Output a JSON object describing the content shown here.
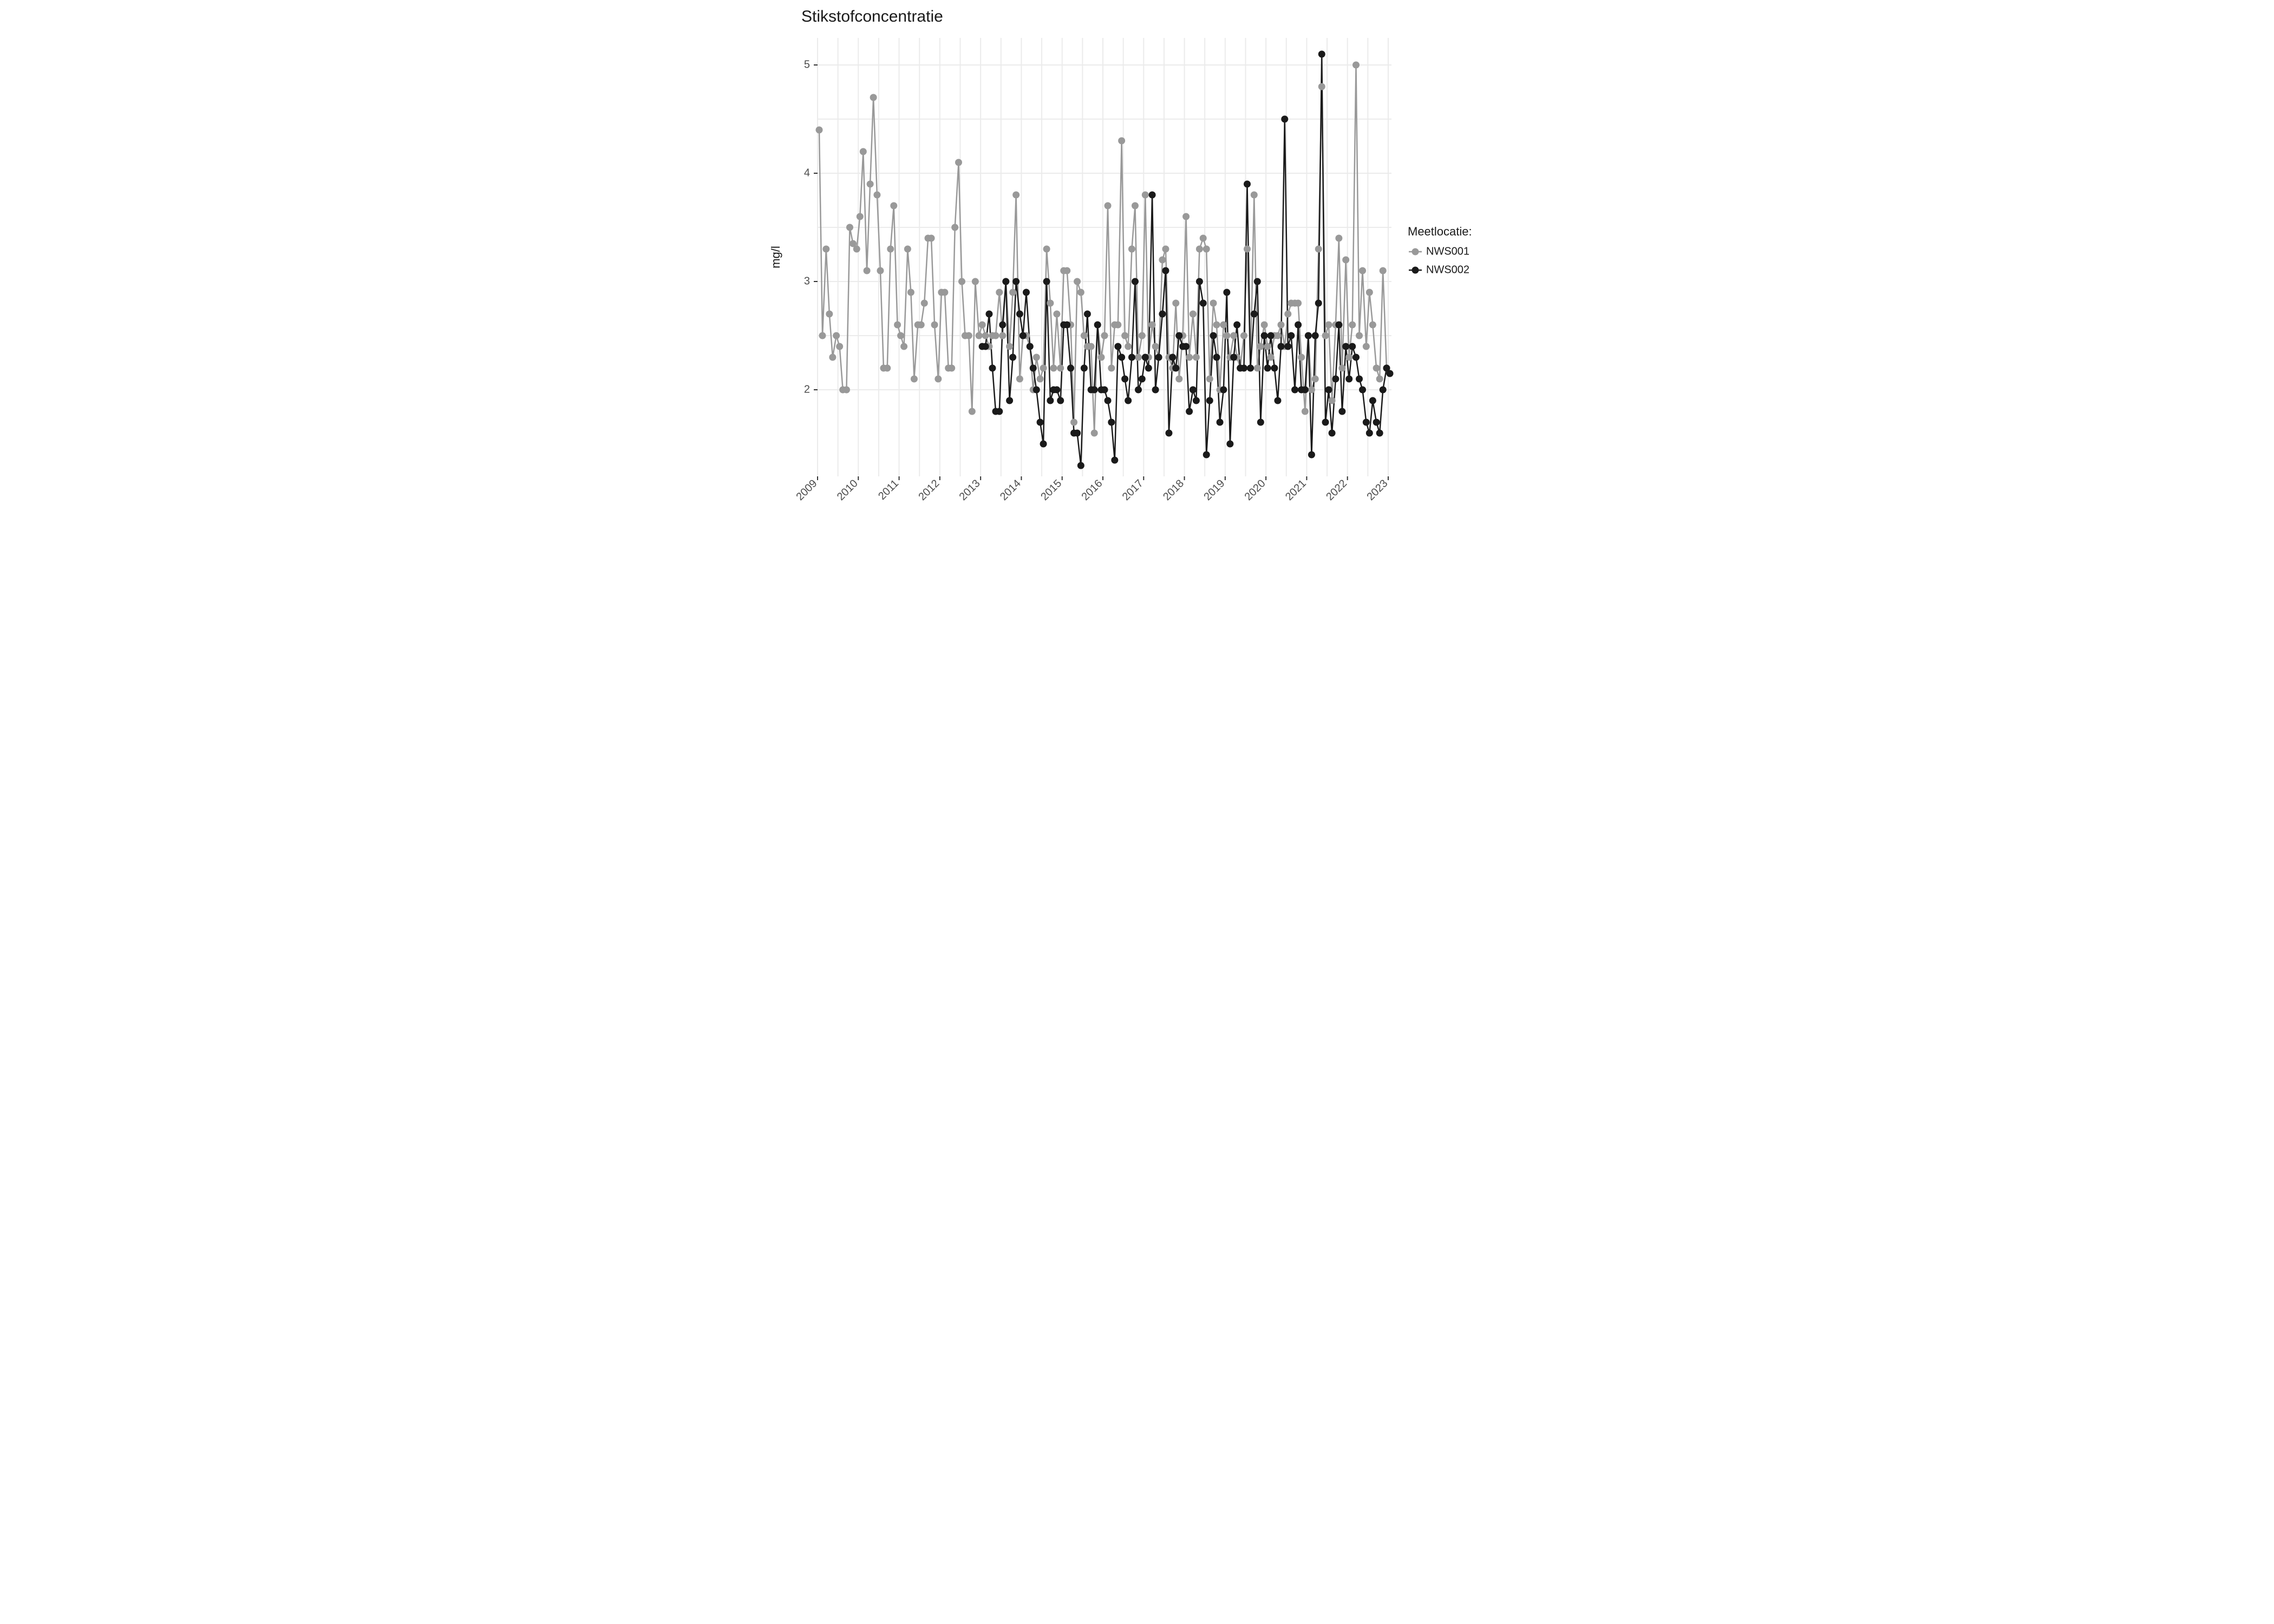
{
  "chart": {
    "type": "line",
    "title": "Stikstofconcentratie",
    "title_fontsize": 30,
    "title_color": "#1a1a1a",
    "ylabel": "mg/l",
    "ylabel_fontsize": 22,
    "legend_title": "Meetlocatie:",
    "legend_fontsize": 22,
    "background_color": "#ffffff",
    "panel_background": "#ffffff",
    "grid_color": "#ebebeb",
    "axis_tick_color": "#333333",
    "tick_label_color": "#4d4d4d",
    "tick_fontsize": 20,
    "point_radius": 6.5,
    "line_width": 2.5,
    "x": {
      "min": 2009.0,
      "max": 2023.08,
      "ticks": [
        2009,
        2010,
        2011,
        2012,
        2013,
        2014,
        2015,
        2016,
        2017,
        2018,
        2019,
        2020,
        2021,
        2022,
        2023
      ],
      "tick_rotation": 45
    },
    "y": {
      "min": 1.2,
      "max": 5.25,
      "ticks": [
        2,
        3,
        4,
        5
      ]
    },
    "series": [
      {
        "name": "NWS001",
        "color": "#999999",
        "data": [
          [
            2009.04,
            4.4
          ],
          [
            2009.12,
            2.5
          ],
          [
            2009.21,
            3.3
          ],
          [
            2009.29,
            2.7
          ],
          [
            2009.37,
            2.3
          ],
          [
            2009.46,
            2.5
          ],
          [
            2009.54,
            2.4
          ],
          [
            2009.62,
            2.0
          ],
          [
            2009.71,
            2.0
          ],
          [
            2009.79,
            3.5
          ],
          [
            2009.87,
            3.35
          ],
          [
            2009.96,
            3.3
          ],
          [
            2010.04,
            3.6
          ],
          [
            2010.12,
            4.2
          ],
          [
            2010.21,
            3.1
          ],
          [
            2010.29,
            3.9
          ],
          [
            2010.37,
            4.7
          ],
          [
            2010.46,
            3.8
          ],
          [
            2010.54,
            3.1
          ],
          [
            2010.62,
            2.2
          ],
          [
            2010.71,
            2.2
          ],
          [
            2010.79,
            3.3
          ],
          [
            2010.87,
            3.7
          ],
          [
            2010.96,
            2.6
          ],
          [
            2011.04,
            2.5
          ],
          [
            2011.12,
            2.4
          ],
          [
            2011.21,
            3.3
          ],
          [
            2011.29,
            2.9
          ],
          [
            2011.37,
            2.1
          ],
          [
            2011.46,
            2.6
          ],
          [
            2011.54,
            2.6
          ],
          [
            2011.62,
            2.8
          ],
          [
            2011.71,
            3.4
          ],
          [
            2011.79,
            3.4
          ],
          [
            2011.87,
            2.6
          ],
          [
            2011.96,
            2.1
          ],
          [
            2012.04,
            2.9
          ],
          [
            2012.12,
            2.9
          ],
          [
            2012.21,
            2.2
          ],
          [
            2012.29,
            2.2
          ],
          [
            2012.37,
            3.5
          ],
          [
            2012.46,
            4.1
          ],
          [
            2012.54,
            3.0
          ],
          [
            2012.62,
            2.5
          ],
          [
            2012.71,
            2.5
          ],
          [
            2012.79,
            1.8
          ],
          [
            2012.87,
            3.0
          ],
          [
            2012.96,
            2.5
          ],
          [
            2013.04,
            2.6
          ],
          [
            2013.12,
            2.5
          ],
          [
            2013.21,
            2.4
          ],
          [
            2013.29,
            2.5
          ],
          [
            2013.37,
            2.5
          ],
          [
            2013.46,
            2.9
          ],
          [
            2013.54,
            2.5
          ],
          [
            2013.62,
            3.0
          ],
          [
            2013.71,
            2.4
          ],
          [
            2013.79,
            2.9
          ],
          [
            2013.87,
            3.8
          ],
          [
            2013.96,
            2.1
          ],
          [
            2014.04,
            2.5
          ],
          [
            2014.12,
            2.5
          ],
          [
            2014.21,
            2.4
          ],
          [
            2014.29,
            2.0
          ],
          [
            2014.37,
            2.3
          ],
          [
            2014.46,
            2.1
          ],
          [
            2014.54,
            2.2
          ],
          [
            2014.62,
            3.3
          ],
          [
            2014.71,
            2.8
          ],
          [
            2014.79,
            2.2
          ],
          [
            2014.87,
            2.7
          ],
          [
            2014.96,
            2.2
          ],
          [
            2015.04,
            3.1
          ],
          [
            2015.12,
            3.1
          ],
          [
            2015.21,
            2.6
          ],
          [
            2015.29,
            1.7
          ],
          [
            2015.37,
            3.0
          ],
          [
            2015.46,
            2.9
          ],
          [
            2015.54,
            2.5
          ],
          [
            2015.62,
            2.4
          ],
          [
            2015.71,
            2.4
          ],
          [
            2015.79,
            1.6
          ],
          [
            2015.87,
            2.6
          ],
          [
            2015.96,
            2.3
          ],
          [
            2016.04,
            2.5
          ],
          [
            2016.12,
            3.7
          ],
          [
            2016.21,
            2.2
          ],
          [
            2016.29,
            2.6
          ],
          [
            2016.37,
            2.6
          ],
          [
            2016.46,
            4.3
          ],
          [
            2016.54,
            2.5
          ],
          [
            2016.62,
            2.4
          ],
          [
            2016.71,
            3.3
          ],
          [
            2016.79,
            3.7
          ],
          [
            2016.87,
            2.3
          ],
          [
            2016.96,
            2.5
          ],
          [
            2017.04,
            3.8
          ],
          [
            2017.12,
            2.3
          ],
          [
            2017.21,
            2.6
          ],
          [
            2017.29,
            2.4
          ],
          [
            2017.37,
            2.3
          ],
          [
            2017.46,
            3.2
          ],
          [
            2017.54,
            3.3
          ],
          [
            2017.62,
            2.3
          ],
          [
            2017.71,
            2.2
          ],
          [
            2017.79,
            2.8
          ],
          [
            2017.87,
            2.1
          ],
          [
            2017.96,
            2.5
          ],
          [
            2018.04,
            3.6
          ],
          [
            2018.12,
            2.3
          ],
          [
            2018.21,
            2.7
          ],
          [
            2018.29,
            2.3
          ],
          [
            2018.37,
            3.3
          ],
          [
            2018.46,
            3.4
          ],
          [
            2018.54,
            3.3
          ],
          [
            2018.62,
            2.1
          ],
          [
            2018.71,
            2.8
          ],
          [
            2018.79,
            2.6
          ],
          [
            2018.87,
            2.0
          ],
          [
            2018.96,
            2.6
          ],
          [
            2019.04,
            2.5
          ],
          [
            2019.12,
            2.3
          ],
          [
            2019.21,
            2.5
          ],
          [
            2019.29,
            2.3
          ],
          [
            2019.37,
            2.2
          ],
          [
            2019.46,
            2.5
          ],
          [
            2019.54,
            3.3
          ],
          [
            2019.62,
            2.2
          ],
          [
            2019.71,
            3.8
          ],
          [
            2019.79,
            2.2
          ],
          [
            2019.87,
            2.4
          ],
          [
            2019.96,
            2.6
          ],
          [
            2020.04,
            2.4
          ],
          [
            2020.12,
            2.3
          ],
          [
            2020.21,
            2.5
          ],
          [
            2020.29,
            2.5
          ],
          [
            2020.37,
            2.6
          ],
          [
            2020.46,
            2.4
          ],
          [
            2020.54,
            2.7
          ],
          [
            2020.62,
            2.8
          ],
          [
            2020.71,
            2.8
          ],
          [
            2020.79,
            2.8
          ],
          [
            2020.87,
            2.3
          ],
          [
            2020.96,
            1.8
          ],
          [
            2021.04,
            2.5
          ],
          [
            2021.12,
            2.0
          ],
          [
            2021.21,
            2.1
          ],
          [
            2021.29,
            3.3
          ],
          [
            2021.37,
            4.8
          ],
          [
            2021.46,
            2.5
          ],
          [
            2021.54,
            2.6
          ],
          [
            2021.62,
            1.9
          ],
          [
            2021.71,
            2.6
          ],
          [
            2021.79,
            3.4
          ],
          [
            2021.87,
            2.2
          ],
          [
            2021.96,
            3.2
          ],
          [
            2022.04,
            2.3
          ],
          [
            2022.12,
            2.6
          ],
          [
            2022.21,
            5.0
          ],
          [
            2022.29,
            2.5
          ],
          [
            2022.37,
            3.1
          ],
          [
            2022.46,
            2.4
          ],
          [
            2022.54,
            2.9
          ],
          [
            2022.62,
            2.6
          ],
          [
            2022.71,
            2.2
          ],
          [
            2022.79,
            2.1
          ],
          [
            2022.87,
            3.1
          ],
          [
            2022.96,
            2.2
          ],
          [
            2023.04,
            2.15
          ]
        ]
      },
      {
        "name": "NWS002",
        "color": "#1a1a1a",
        "data": [
          [
            2013.04,
            2.4
          ],
          [
            2013.12,
            2.4
          ],
          [
            2013.21,
            2.7
          ],
          [
            2013.29,
            2.2
          ],
          [
            2013.37,
            1.8
          ],
          [
            2013.46,
            1.8
          ],
          [
            2013.54,
            2.6
          ],
          [
            2013.62,
            3.0
          ],
          [
            2013.71,
            1.9
          ],
          [
            2013.79,
            2.3
          ],
          [
            2013.87,
            3.0
          ],
          [
            2013.96,
            2.7
          ],
          [
            2014.04,
            2.5
          ],
          [
            2014.12,
            2.9
          ],
          [
            2014.21,
            2.4
          ],
          [
            2014.29,
            2.2
          ],
          [
            2014.37,
            2.0
          ],
          [
            2014.46,
            1.7
          ],
          [
            2014.54,
            1.5
          ],
          [
            2014.62,
            3.0
          ],
          [
            2014.71,
            1.9
          ],
          [
            2014.79,
            2.0
          ],
          [
            2014.87,
            2.0
          ],
          [
            2014.96,
            1.9
          ],
          [
            2015.04,
            2.6
          ],
          [
            2015.12,
            2.6
          ],
          [
            2015.21,
            2.2
          ],
          [
            2015.29,
            1.6
          ],
          [
            2015.37,
            1.6
          ],
          [
            2015.46,
            1.3
          ],
          [
            2015.54,
            2.2
          ],
          [
            2015.62,
            2.7
          ],
          [
            2015.71,
            2.0
          ],
          [
            2015.79,
            2.0
          ],
          [
            2015.87,
            2.6
          ],
          [
            2015.96,
            2.0
          ],
          [
            2016.04,
            2.0
          ],
          [
            2016.12,
            1.9
          ],
          [
            2016.21,
            1.7
          ],
          [
            2016.29,
            1.35
          ],
          [
            2016.37,
            2.4
          ],
          [
            2016.46,
            2.3
          ],
          [
            2016.54,
            2.1
          ],
          [
            2016.62,
            1.9
          ],
          [
            2016.71,
            2.3
          ],
          [
            2016.79,
            3.0
          ],
          [
            2016.87,
            2.0
          ],
          [
            2016.96,
            2.1
          ],
          [
            2017.04,
            2.3
          ],
          [
            2017.12,
            2.2
          ],
          [
            2017.21,
            3.8
          ],
          [
            2017.29,
            2.0
          ],
          [
            2017.37,
            2.3
          ],
          [
            2017.46,
            2.7
          ],
          [
            2017.54,
            3.1
          ],
          [
            2017.62,
            1.6
          ],
          [
            2017.71,
            2.3
          ],
          [
            2017.79,
            2.2
          ],
          [
            2017.87,
            2.5
          ],
          [
            2017.96,
            2.4
          ],
          [
            2018.04,
            2.4
          ],
          [
            2018.12,
            1.8
          ],
          [
            2018.21,
            2.0
          ],
          [
            2018.29,
            1.9
          ],
          [
            2018.37,
            3.0
          ],
          [
            2018.46,
            2.8
          ],
          [
            2018.54,
            1.4
          ],
          [
            2018.62,
            1.9
          ],
          [
            2018.71,
            2.5
          ],
          [
            2018.79,
            2.3
          ],
          [
            2018.87,
            1.7
          ],
          [
            2018.96,
            2.0
          ],
          [
            2019.04,
            2.9
          ],
          [
            2019.12,
            1.5
          ],
          [
            2019.21,
            2.3
          ],
          [
            2019.29,
            2.6
          ],
          [
            2019.37,
            2.2
          ],
          [
            2019.46,
            2.2
          ],
          [
            2019.54,
            3.9
          ],
          [
            2019.62,
            2.2
          ],
          [
            2019.71,
            2.7
          ],
          [
            2019.79,
            3.0
          ],
          [
            2019.87,
            1.7
          ],
          [
            2019.96,
            2.5
          ],
          [
            2020.04,
            2.2
          ],
          [
            2020.12,
            2.5
          ],
          [
            2020.21,
            2.2
          ],
          [
            2020.29,
            1.9
          ],
          [
            2020.37,
            2.4
          ],
          [
            2020.46,
            4.5
          ],
          [
            2020.54,
            2.4
          ],
          [
            2020.62,
            2.5
          ],
          [
            2020.71,
            2.0
          ],
          [
            2020.79,
            2.6
          ],
          [
            2020.87,
            2.0
          ],
          [
            2020.96,
            2.0
          ],
          [
            2021.04,
            2.5
          ],
          [
            2021.12,
            1.4
          ],
          [
            2021.21,
            2.5
          ],
          [
            2021.29,
            2.8
          ],
          [
            2021.37,
            5.1
          ],
          [
            2021.46,
            1.7
          ],
          [
            2021.54,
            2.0
          ],
          [
            2021.62,
            1.6
          ],
          [
            2021.71,
            2.1
          ],
          [
            2021.79,
            2.6
          ],
          [
            2021.87,
            1.8
          ],
          [
            2021.96,
            2.4
          ],
          [
            2022.04,
            2.1
          ],
          [
            2022.12,
            2.4
          ],
          [
            2022.21,
            2.3
          ],
          [
            2022.29,
            2.1
          ],
          [
            2022.37,
            2.0
          ],
          [
            2022.46,
            1.7
          ],
          [
            2022.54,
            1.6
          ],
          [
            2022.62,
            1.9
          ],
          [
            2022.71,
            1.7
          ],
          [
            2022.79,
            1.6
          ],
          [
            2022.87,
            2.0
          ],
          [
            2022.96,
            2.2
          ],
          [
            2023.04,
            2.15
          ]
        ]
      }
    ]
  }
}
